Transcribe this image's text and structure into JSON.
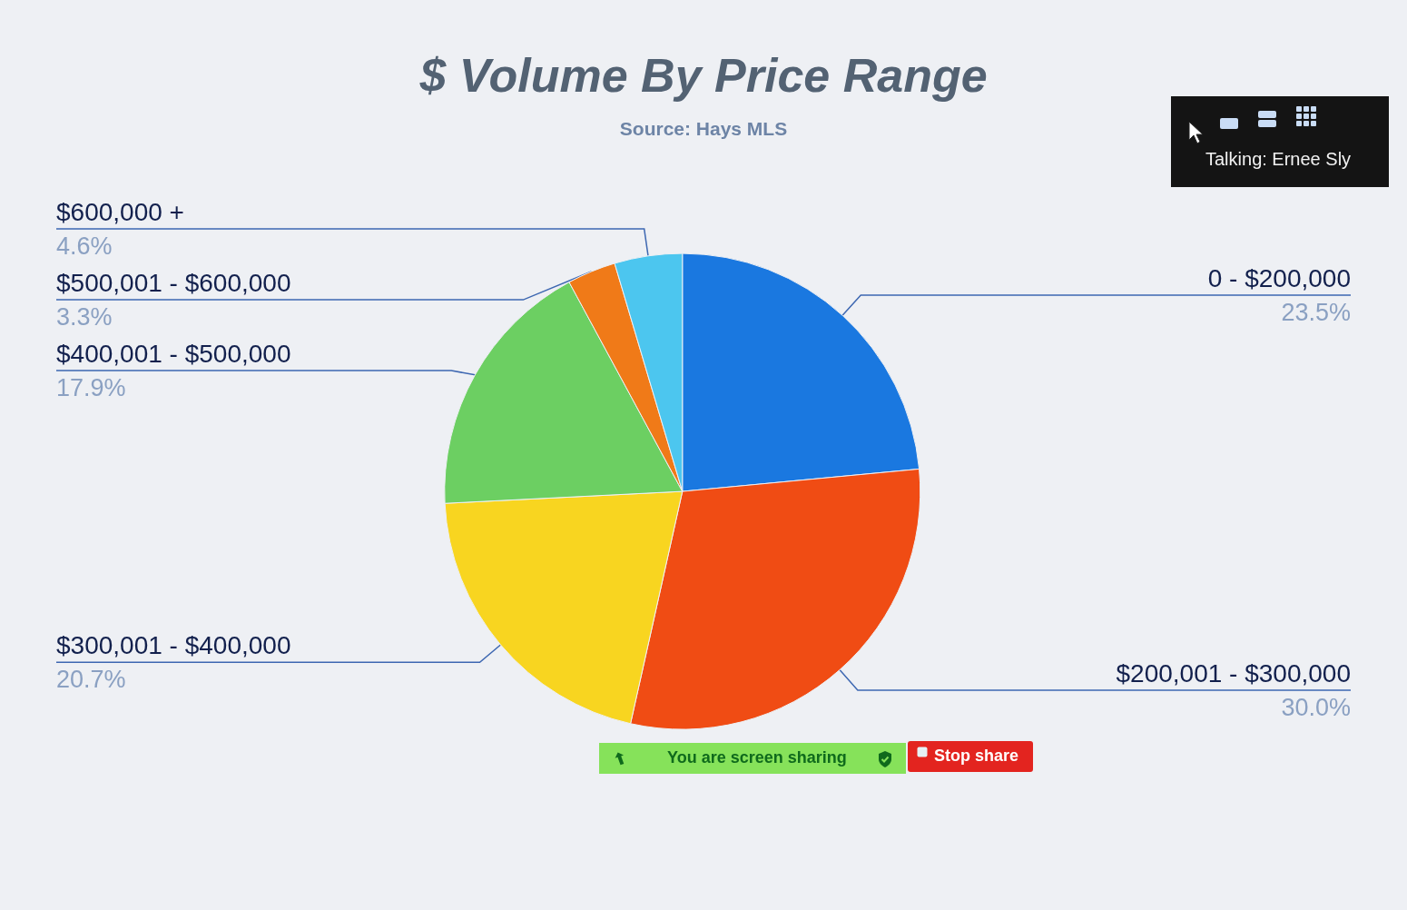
{
  "chart_data": {
    "type": "pie",
    "title": "$ Volume By Price Range",
    "annotations": [
      "Source: Hays MLS",
      "Talking: Ernee Sly",
      "You are screen sharing",
      "Stop share"
    ],
    "categories": [
      "0 - $200,000",
      "$200,001 - $300,000",
      "$300,001 - $400,000",
      "$400,001 - $500,000",
      "$500,001 - $600,000",
      "$600,000 +"
    ],
    "values": [
      23.5,
      30.0,
      20.7,
      17.9,
      3.3,
      4.6
    ],
    "value_labels": [
      "23.5%",
      "30.0%",
      "20.7%",
      "17.9%",
      "3.3%",
      "4.6%"
    ],
    "colors": [
      "#1a78e0",
      "#f04c14",
      "#f8d520",
      "#6ccf62",
      "#f07a18",
      "#4cc6ef"
    ]
  }
}
